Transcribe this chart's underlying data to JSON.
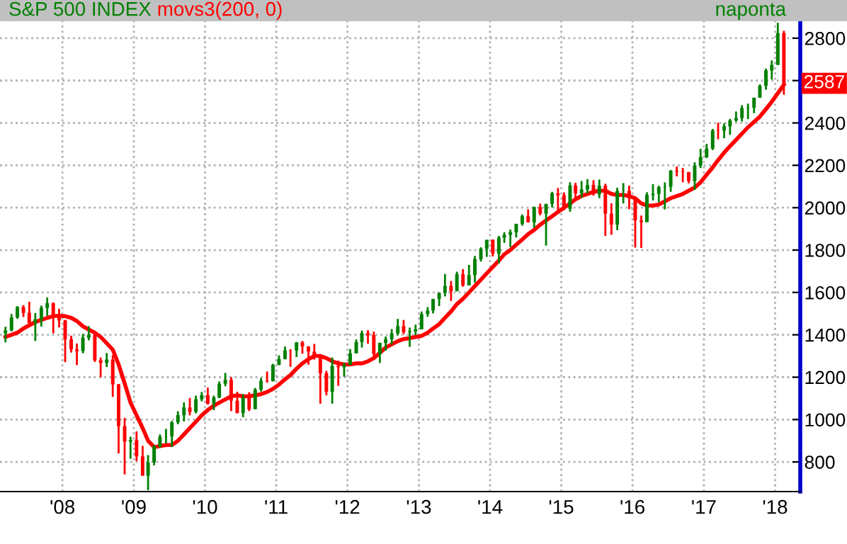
{
  "chart_data": {
    "type": "candlestick",
    "title": "S&P 500 INDEX",
    "x": [
      "2007-03-15",
      "2007-04-15",
      "2007-05-15",
      "2007-06-15",
      "2007-07-15",
      "2007-08-15",
      "2007-09-15",
      "2007-10-15",
      "2007-11-15",
      "2007-12-15",
      "2008-01-15",
      "2008-02-15",
      "2008-03-15",
      "2008-04-15",
      "2008-05-15",
      "2008-06-15",
      "2008-07-15",
      "2008-08-15",
      "2008-09-15",
      "2008-10-15",
      "2008-11-15",
      "2008-12-15",
      "2009-01-15",
      "2009-02-15",
      "2009-03-15",
      "2009-04-15",
      "2009-05-15",
      "2009-06-15",
      "2009-07-15",
      "2009-08-15",
      "2009-09-15",
      "2009-10-15",
      "2009-11-15",
      "2009-12-15",
      "2010-01-15",
      "2010-02-15",
      "2010-03-15",
      "2010-04-15",
      "2010-05-15",
      "2010-06-15",
      "2010-07-15",
      "2010-08-15",
      "2010-09-15",
      "2010-10-15",
      "2010-11-15",
      "2010-12-15",
      "2011-01-15",
      "2011-02-15",
      "2011-03-15",
      "2011-04-15",
      "2011-05-15",
      "2011-06-15",
      "2011-07-15",
      "2011-08-15",
      "2011-09-15",
      "2011-10-15",
      "2011-11-15",
      "2011-12-15",
      "2012-01-15",
      "2012-02-15",
      "2012-03-15",
      "2012-04-15",
      "2012-05-15",
      "2012-06-15",
      "2012-07-15",
      "2012-08-15",
      "2012-09-15",
      "2012-10-15",
      "2012-11-15",
      "2012-12-15",
      "2013-01-15",
      "2013-02-15",
      "2013-03-15",
      "2013-04-15",
      "2013-05-15",
      "2013-06-15",
      "2013-07-15",
      "2013-08-15",
      "2013-09-15",
      "2013-10-15",
      "2013-11-15",
      "2013-12-15",
      "2014-01-15",
      "2014-02-15",
      "2014-03-15",
      "2014-04-15",
      "2014-05-15",
      "2014-06-15",
      "2014-07-15",
      "2014-08-15",
      "2014-09-15",
      "2014-10-15",
      "2014-11-15",
      "2014-12-15",
      "2015-01-15",
      "2015-02-15",
      "2015-03-15",
      "2015-04-15",
      "2015-05-15",
      "2015-06-15",
      "2015-07-15",
      "2015-08-15",
      "2015-09-15",
      "2015-10-15",
      "2015-11-15",
      "2015-12-15",
      "2016-01-15",
      "2016-02-15",
      "2016-03-15",
      "2016-04-15",
      "2016-05-15",
      "2016-06-15",
      "2016-07-15",
      "2016-08-15",
      "2016-09-15",
      "2016-10-15",
      "2016-11-15",
      "2016-12-15",
      "2017-01-15",
      "2017-02-15",
      "2017-03-15",
      "2017-04-15",
      "2017-05-15",
      "2017-06-15",
      "2017-07-15",
      "2017-08-15",
      "2017-09-15",
      "2017-10-15",
      "2017-11-15",
      "2017-12-15",
      "2018-01-15",
      "2018-02-15"
    ],
    "ohlc": [
      [
        1407,
        1438,
        1364,
        1421
      ],
      [
        1421,
        1498,
        1416,
        1482
      ],
      [
        1482,
        1535,
        1476,
        1531
      ],
      [
        1531,
        1540,
        1484,
        1503
      ],
      [
        1504,
        1556,
        1454,
        1455
      ],
      [
        1455,
        1503,
        1371,
        1474
      ],
      [
        1474,
        1538,
        1439,
        1527
      ],
      [
        1527,
        1576,
        1490,
        1549
      ],
      [
        1549,
        1553,
        1407,
        1481
      ],
      [
        1481,
        1523,
        1435,
        1468
      ],
      [
        1468,
        1471,
        1271,
        1379
      ],
      [
        1379,
        1396,
        1316,
        1331
      ],
      [
        1331,
        1359,
        1257,
        1323
      ],
      [
        1323,
        1404,
        1313,
        1386
      ],
      [
        1386,
        1441,
        1374,
        1400
      ],
      [
        1400,
        1405,
        1272,
        1280
      ],
      [
        1280,
        1293,
        1200,
        1267
      ],
      [
        1267,
        1314,
        1248,
        1283
      ],
      [
        1283,
        1304,
        1107,
        1166
      ],
      [
        1166,
        1168,
        840,
        969
      ],
      [
        969,
        1008,
        741,
        896
      ],
      [
        896,
        919,
        815,
        903
      ],
      [
        903,
        944,
        804,
        826
      ],
      [
        826,
        876,
        735,
        735
      ],
      [
        735,
        832,
        667,
        798
      ],
      [
        798,
        880,
        784,
        873
      ],
      [
        873,
        930,
        867,
        919
      ],
      [
        919,
        956,
        888,
        920
      ],
      [
        920,
        993,
        870,
        987
      ],
      [
        987,
        1039,
        978,
        1021
      ],
      [
        1021,
        1081,
        991,
        1057
      ],
      [
        1057,
        1102,
        1020,
        1036
      ],
      [
        1036,
        1113,
        1029,
        1096
      ],
      [
        1096,
        1130,
        1086,
        1115
      ],
      [
        1115,
        1151,
        1071,
        1074
      ],
      [
        1074,
        1113,
        1045,
        1104
      ],
      [
        1104,
        1180,
        1101,
        1169
      ],
      [
        1169,
        1220,
        1157,
        1187
      ],
      [
        1187,
        1200,
        1040,
        1089
      ],
      [
        1089,
        1131,
        1029,
        1031
      ],
      [
        1031,
        1120,
        1011,
        1102
      ],
      [
        1102,
        1129,
        1040,
        1049
      ],
      [
        1049,
        1149,
        1049,
        1141
      ],
      [
        1141,
        1196,
        1132,
        1183
      ],
      [
        1183,
        1227,
        1174,
        1181
      ],
      [
        1181,
        1263,
        1180,
        1258
      ],
      [
        1258,
        1303,
        1257,
        1286
      ],
      [
        1286,
        1345,
        1284,
        1327
      ],
      [
        1327,
        1332,
        1249,
        1326
      ],
      [
        1326,
        1366,
        1295,
        1364
      ],
      [
        1364,
        1371,
        1311,
        1345
      ],
      [
        1345,
        1346,
        1259,
        1321
      ],
      [
        1321,
        1357,
        1283,
        1292
      ],
      [
        1292,
        1307,
        1075,
        1219
      ],
      [
        1219,
        1230,
        1114,
        1131
      ],
      [
        1131,
        1293,
        1075,
        1253
      ],
      [
        1253,
        1278,
        1159,
        1247
      ],
      [
        1247,
        1269,
        1202,
        1258
      ],
      [
        1258,
        1333,
        1258,
        1312
      ],
      [
        1312,
        1378,
        1312,
        1366
      ],
      [
        1366,
        1420,
        1340,
        1408
      ],
      [
        1408,
        1422,
        1358,
        1398
      ],
      [
        1398,
        1415,
        1291,
        1310
      ],
      [
        1310,
        1363,
        1267,
        1362
      ],
      [
        1362,
        1392,
        1325,
        1379
      ],
      [
        1379,
        1427,
        1354,
        1407
      ],
      [
        1407,
        1475,
        1397,
        1441
      ],
      [
        1441,
        1470,
        1403,
        1412
      ],
      [
        1412,
        1434,
        1343,
        1416
      ],
      [
        1416,
        1448,
        1398,
        1426
      ],
      [
        1426,
        1510,
        1426,
        1498
      ],
      [
        1498,
        1531,
        1485,
        1515
      ],
      [
        1515,
        1570,
        1501,
        1569
      ],
      [
        1569,
        1598,
        1536,
        1598
      ],
      [
        1598,
        1687,
        1581,
        1631
      ],
      [
        1631,
        1654,
        1560,
        1606
      ],
      [
        1606,
        1698,
        1605,
        1686
      ],
      [
        1686,
        1710,
        1627,
        1633
      ],
      [
        1633,
        1730,
        1633,
        1682
      ],
      [
        1682,
        1772,
        1646,
        1757
      ],
      [
        1757,
        1813,
        1746,
        1806
      ],
      [
        1806,
        1849,
        1768,
        1848
      ],
      [
        1848,
        1850,
        1770,
        1783
      ],
      [
        1783,
        1867,
        1737,
        1859
      ],
      [
        1859,
        1884,
        1834,
        1872
      ],
      [
        1872,
        1897,
        1814,
        1884
      ],
      [
        1884,
        1924,
        1859,
        1924
      ],
      [
        1924,
        1968,
        1915,
        1960
      ],
      [
        1960,
        1992,
        1930,
        1931
      ],
      [
        1931,
        2005,
        1905,
        2003
      ],
      [
        2003,
        2019,
        1964,
        1972
      ],
      [
        1972,
        2018,
        1821,
        2018
      ],
      [
        2018,
        2075,
        2001,
        2068
      ],
      [
        2068,
        2093,
        1972,
        2059
      ],
      [
        2059,
        2072,
        1988,
        1995
      ],
      [
        1995,
        2120,
        1981,
        2105
      ],
      [
        2105,
        2118,
        2039,
        2068
      ],
      [
        2068,
        2126,
        2048,
        2086
      ],
      [
        2086,
        2135,
        2068,
        2107
      ],
      [
        2107,
        2130,
        2057,
        2063
      ],
      [
        2063,
        2133,
        2045,
        2104
      ],
      [
        2104,
        2113,
        1867,
        1972
      ],
      [
        1972,
        2021,
        1872,
        1920
      ],
      [
        1920,
        2094,
        1894,
        2079
      ],
      [
        2079,
        2116,
        2020,
        2080
      ],
      [
        2080,
        2104,
        1993,
        2044
      ],
      [
        2044,
        2044,
        1812,
        1940
      ],
      [
        1940,
        1963,
        1810,
        1932
      ],
      [
        1932,
        2073,
        1932,
        2060
      ],
      [
        2060,
        2111,
        2034,
        2065
      ],
      [
        2065,
        2104,
        2026,
        2097
      ],
      [
        2097,
        2120,
        1992,
        2099
      ],
      [
        2099,
        2178,
        2075,
        2174
      ],
      [
        2174,
        2194,
        2148,
        2171
      ],
      [
        2171,
        2188,
        2120,
        2168
      ],
      [
        2168,
        2169,
        2115,
        2126
      ],
      [
        2126,
        2214,
        2084,
        2199
      ],
      [
        2199,
        2278,
        2187,
        2239
      ],
      [
        2239,
        2301,
        2234,
        2279
      ],
      [
        2279,
        2372,
        2272,
        2364
      ],
      [
        2364,
        2401,
        2323,
        2363
      ],
      [
        2363,
        2398,
        2328,
        2384
      ],
      [
        2384,
        2419,
        2344,
        2412
      ],
      [
        2412,
        2454,
        2405,
        2423
      ],
      [
        2423,
        2484,
        2407,
        2470
      ],
      [
        2470,
        2491,
        2418,
        2472
      ],
      [
        2472,
        2520,
        2446,
        2519
      ],
      [
        2519,
        2582,
        2519,
        2575
      ],
      [
        2575,
        2657,
        2557,
        2648
      ],
      [
        2648,
        2695,
        2605,
        2674
      ],
      [
        2674,
        2873,
        2674,
        2824
      ],
      [
        2824,
        2835,
        2533,
        2587
      ]
    ],
    "colors": [
      "#008000",
      "#008000",
      "#008000",
      "#ff0000",
      "#ff0000",
      "#008000",
      "#008000",
      "#008000",
      "#ff0000",
      "#ff0000",
      "#ff0000",
      "#ff0000",
      "#ff0000",
      "#008000",
      "#008000",
      "#ff0000",
      "#ff0000",
      "#008000",
      "#ff0000",
      "#ff0000",
      "#ff0000",
      "#008000",
      "#ff0000",
      "#ff0000",
      "#008000",
      "#008000",
      "#008000",
      "#008000",
      "#008000",
      "#008000",
      "#008000",
      "#ff0000",
      "#008000",
      "#008000",
      "#ff0000",
      "#008000",
      "#008000",
      "#008000",
      "#ff0000",
      "#ff0000",
      "#008000",
      "#ff0000",
      "#008000",
      "#008000",
      "#ff0000",
      "#008000",
      "#008000",
      "#008000",
      "#ff0000",
      "#008000",
      "#ff0000",
      "#ff0000",
      "#ff0000",
      "#ff0000",
      "#ff0000",
      "#008000",
      "#ff0000",
      "#008000",
      "#008000",
      "#008000",
      "#008000",
      "#ff0000",
      "#ff0000",
      "#008000",
      "#008000",
      "#008000",
      "#008000",
      "#ff0000",
      "#008000",
      "#008000",
      "#008000",
      "#008000",
      "#008000",
      "#008000",
      "#008000",
      "#ff0000",
      "#008000",
      "#ff0000",
      "#008000",
      "#008000",
      "#008000",
      "#008000",
      "#ff0000",
      "#008000",
      "#008000",
      "#008000",
      "#008000",
      "#008000",
      "#ff0000",
      "#008000",
      "#ff0000",
      "#008000",
      "#008000",
      "#ff0000",
      "#ff0000",
      "#008000",
      "#ff0000",
      "#008000",
      "#008000",
      "#ff0000",
      "#008000",
      "#ff0000",
      "#ff0000",
      "#008000",
      "#008000",
      "#ff0000",
      "#ff0000",
      "#ff0000",
      "#008000",
      "#008000",
      "#008000",
      "#008000",
      "#008000",
      "#ff0000",
      "#ff0000",
      "#ff0000",
      "#008000",
      "#008000",
      "#008000",
      "#008000",
      "#ff0000",
      "#008000",
      "#008000",
      "#008000",
      "#008000",
      "#008000",
      "#008000",
      "#008000",
      "#008000",
      "#008000",
      "#008000",
      "#ff0000"
    ],
    "series": [
      {
        "name": "movs3(200, 0)",
        "type": "line",
        "color": "#ff0000",
        "values": [
          1390,
          1400,
          1410,
          1430,
          1445,
          1460,
          1470,
          1480,
          1488,
          1490,
          1488,
          1480,
          1465,
          1440,
          1425,
          1410,
          1390,
          1360,
          1330,
          1260,
          1170,
          1080,
          1020,
          960,
          900,
          870,
          875,
          880,
          880,
          900,
          930,
          960,
          990,
          1020,
          1045,
          1065,
          1080,
          1095,
          1110,
          1115,
          1110,
          1110,
          1115,
          1120,
          1130,
          1145,
          1165,
          1190,
          1210,
          1240,
          1265,
          1285,
          1300,
          1300,
          1290,
          1275,
          1265,
          1260,
          1260,
          1265,
          1265,
          1275,
          1290,
          1315,
          1340,
          1355,
          1370,
          1380,
          1385,
          1390,
          1395,
          1410,
          1430,
          1450,
          1480,
          1510,
          1545,
          1570,
          1600,
          1630,
          1660,
          1690,
          1720,
          1750,
          1780,
          1800,
          1825,
          1850,
          1875,
          1895,
          1920,
          1940,
          1960,
          1980,
          2000,
          2020,
          2040,
          2055,
          2065,
          2075,
          2080,
          2080,
          2065,
          2060,
          2060,
          2055,
          2045,
          2020,
          2010,
          2010,
          2015,
          2030,
          2045,
          2055,
          2065,
          2080,
          2095,
          2120,
          2155,
          2190,
          2225,
          2260,
          2290,
          2320,
          2350,
          2380,
          2405,
          2430,
          2465,
          2500,
          2540,
          2580
        ]
      }
    ],
    "xlim": [
      "2007-02-15",
      "2018-05-10"
    ],
    "xticks": [
      {
        "value": "2008-01-01",
        "label": "'08"
      },
      {
        "value": "2009-01-01",
        "label": "'09"
      },
      {
        "value": "2010-01-01",
        "label": "'10"
      },
      {
        "value": "2011-01-01",
        "label": "'11"
      },
      {
        "value": "2012-01-01",
        "label": "'12"
      },
      {
        "value": "2013-01-01",
        "label": "'13"
      },
      {
        "value": "2014-01-01",
        "label": "'14"
      },
      {
        "value": "2015-01-01",
        "label": "'15"
      },
      {
        "value": "2016-01-01",
        "label": "'16"
      },
      {
        "value": "2017-01-01",
        "label": "'17"
      },
      {
        "value": "2018-01-01",
        "label": "'18"
      }
    ],
    "ylim": [
      660,
      2880
    ],
    "yticks": [
      800,
      1000,
      1200,
      1400,
      1600,
      1800,
      2000,
      2200,
      2400,
      {
        "value": 2600,
        "label": null
      },
      2800
    ],
    "grid": true,
    "legend": false,
    "annotations": [
      "naponta",
      {
        "text": "2587",
        "x": "2018-02-15",
        "y": 2587
      }
    ]
  }
}
